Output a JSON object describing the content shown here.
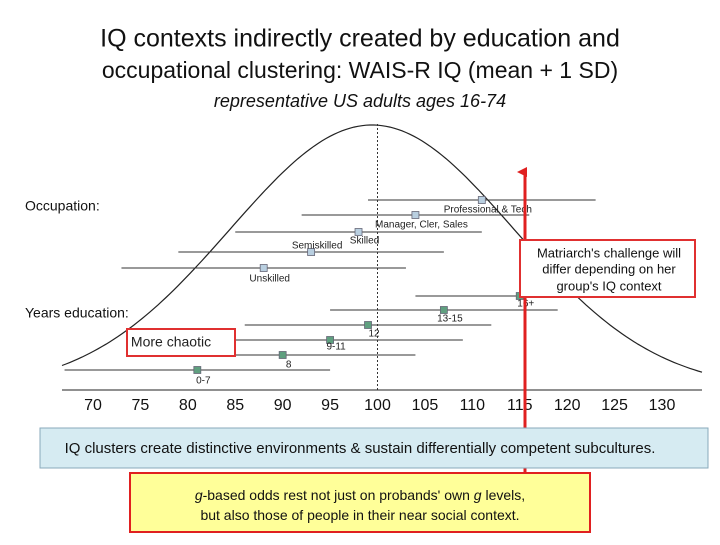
{
  "chart_data": {
    "type": "errorbar",
    "title": [
      "IQ contexts indirectly created by education and",
      "occupational clustering: WAIS-R IQ (mean + 1 SD)"
    ],
    "subtitle": "representative US adults ages 16-74",
    "xlim": [
      70,
      130
    ],
    "xticks": [
      70,
      75,
      80,
      85,
      90,
      95,
      100,
      105,
      110,
      115,
      120,
      125,
      130
    ],
    "series": [
      {
        "name": "Occupation:",
        "color": "#b9cfe0",
        "labels": [
          "Professional & Tech",
          "Manager, Cler, Sales",
          "Skilled",
          "Semiskilled",
          "Unskilled"
        ],
        "values": [
          111,
          104,
          98,
          93,
          88
        ],
        "errors": [
          12,
          12,
          13,
          14,
          15
        ]
      },
      {
        "name": "Years education:",
        "color": "#5f9f7f",
        "labels": [
          "16+",
          "13-15",
          "12",
          "9-11",
          "8",
          "0-7"
        ],
        "values": [
          115,
          107,
          99,
          95,
          90,
          81
        ],
        "errors": [
          11,
          12,
          13,
          14,
          14,
          14
        ]
      }
    ],
    "annotations": {
      "chaotic": "More chaotic",
      "callout": [
        "Matriarch's challenge will",
        "differ depending on her",
        "group's IQ context"
      ],
      "banner": "IQ clusters create distinctive environments & sustain differentially competent subcultures.",
      "note": [
        [
          "g",
          "-based odds rest not just on probands' own ",
          "g",
          " levels,"
        ],
        [
          "but also those of people in their near social context."
        ]
      ]
    }
  }
}
